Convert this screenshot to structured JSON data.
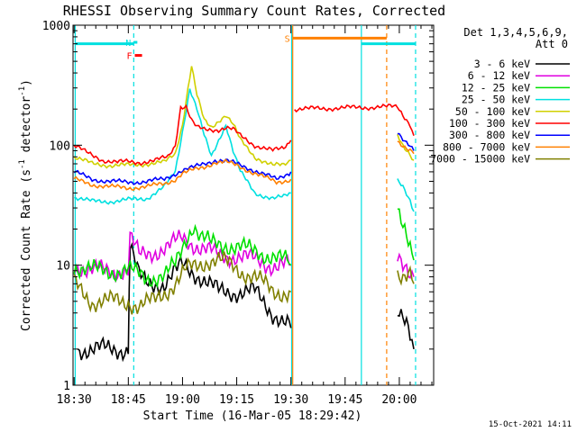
{
  "chart_data": {
    "type": "line",
    "title": "RHESSI Observing Summary Count Rates, Corrected",
    "xlabel": "Start Time (16-Mar-05 18:29:42)",
    "ylabel": "Corrected Count Rate (s⁻¹ detector⁻¹)",
    "ylabel_main": "Corrected Count Rate (s",
    "ylabel_sup1": "-1",
    "ylabel_mid": " detector",
    "ylabel_sup2": "-1",
    "ylabel_end": ")",
    "x_unit": "minutes",
    "x_start": "18:30",
    "xlim": [
      -0.3,
      99.5
    ],
    "ylim": [
      1,
      1000
    ],
    "yscale": "log",
    "x_ticks": [
      {
        "pos": 0,
        "label": "18:30"
      },
      {
        "pos": 15,
        "label": "18:45"
      },
      {
        "pos": 30,
        "label": "19:00"
      },
      {
        "pos": 45,
        "label": "19:15"
      },
      {
        "pos": 60,
        "label": "19:30"
      },
      {
        "pos": 75,
        "label": "19:45"
      },
      {
        "pos": 90,
        "label": "20:00"
      }
    ],
    "y_ticks": [
      {
        "val": 1,
        "label": "1"
      },
      {
        "val": 10,
        "label": "10"
      },
      {
        "val": 100,
        "label": "100"
      },
      {
        "val": 1000,
        "label": "1000"
      }
    ],
    "legend_header": [
      "Det 1,3,4,5,6,9,",
      "Att 0"
    ],
    "legend_placement": "right",
    "footer_date": "15-Oct-2021 14:11",
    "gaps": [
      [
        60.5,
        89.2
      ]
    ],
    "series": [
      {
        "name": "3 - 6 keV",
        "color": "#000000",
        "points": [
          [
            1,
            2
          ],
          [
            5,
            2
          ],
          [
            10,
            2
          ],
          [
            15,
            2
          ],
          [
            15.5,
            15
          ],
          [
            18,
            8
          ],
          [
            20,
            7
          ],
          [
            25,
            7
          ],
          [
            30,
            10
          ],
          [
            35,
            8
          ],
          [
            40,
            6
          ],
          [
            45,
            6
          ],
          [
            50,
            6
          ],
          [
            55,
            4
          ],
          [
            60,
            3
          ],
          [
            89.5,
            4
          ],
          [
            92,
            3
          ],
          [
            94,
            2
          ]
        ]
      },
      {
        "name": "6 - 12 keV",
        "color": "#e000e0",
        "points": [
          [
            0,
            10
          ],
          [
            5,
            9
          ],
          [
            10,
            9
          ],
          [
            15,
            9
          ],
          [
            15.5,
            17
          ],
          [
            18,
            12
          ],
          [
            22,
            13
          ],
          [
            26,
            14
          ],
          [
            30,
            17
          ],
          [
            35,
            14
          ],
          [
            40,
            12
          ],
          [
            45,
            12
          ],
          [
            50,
            11
          ],
          [
            55,
            10
          ],
          [
            58,
            10
          ],
          [
            60,
            10
          ],
          [
            89.5,
            11
          ],
          [
            91,
            9
          ],
          [
            93,
            8
          ],
          [
            94,
            8
          ]
        ]
      },
      {
        "name": "12 - 25 keV",
        "color": "#00e000",
        "points": [
          [
            0,
            10
          ],
          [
            5,
            9
          ],
          [
            10,
            9
          ],
          [
            15,
            9
          ],
          [
            20,
            8
          ],
          [
            25,
            8
          ],
          [
            28,
            10
          ],
          [
            31,
            17
          ],
          [
            33,
            22
          ],
          [
            35,
            17
          ],
          [
            38,
            15
          ],
          [
            42,
            15
          ],
          [
            46,
            14
          ],
          [
            50,
            13
          ],
          [
            55,
            12
          ],
          [
            58,
            11
          ],
          [
            60,
            10
          ],
          [
            89.5,
            26
          ],
          [
            91,
            20
          ],
          [
            93,
            15
          ],
          [
            94,
            11
          ]
        ]
      },
      {
        "name": "25 - 50 keV",
        "color": "#00e0e0",
        "points": [
          [
            0,
            37
          ],
          [
            5,
            34
          ],
          [
            10,
            34
          ],
          [
            15,
            35
          ],
          [
            20,
            36
          ],
          [
            25,
            45
          ],
          [
            28,
            60
          ],
          [
            30,
            130
          ],
          [
            32,
            300
          ],
          [
            34,
            200
          ],
          [
            36,
            120
          ],
          [
            38,
            80
          ],
          [
            40,
            110
          ],
          [
            42,
            150
          ],
          [
            44,
            90
          ],
          [
            46,
            60
          ],
          [
            50,
            40
          ],
          [
            55,
            36
          ],
          [
            58,
            37
          ],
          [
            60,
            40
          ],
          [
            89.5,
            50
          ],
          [
            91,
            45
          ],
          [
            93,
            35
          ],
          [
            94,
            28
          ]
        ]
      },
      {
        "name": "50 - 100 keV",
        "color": "#d0d000",
        "points": [
          [
            0,
            80
          ],
          [
            5,
            70
          ],
          [
            10,
            68
          ],
          [
            15,
            68
          ],
          [
            20,
            70
          ],
          [
            25,
            72
          ],
          [
            28,
            85
          ],
          [
            30,
            150
          ],
          [
            31.5,
            300
          ],
          [
            32.5,
            460
          ],
          [
            34,
            260
          ],
          [
            36,
            160
          ],
          [
            38,
            140
          ],
          [
            40,
            160
          ],
          [
            42,
            180
          ],
          [
            44,
            150
          ],
          [
            46,
            110
          ],
          [
            50,
            80
          ],
          [
            55,
            68
          ],
          [
            58,
            68
          ],
          [
            60,
            75
          ],
          [
            89.5,
            120
          ],
          [
            91,
            100
          ],
          [
            93,
            85
          ],
          [
            94,
            75
          ]
        ]
      },
      {
        "name": "100 - 300 keV",
        "color": "#ff0000",
        "points": [
          [
            0,
            100
          ],
          [
            4,
            85
          ],
          [
            8,
            75
          ],
          [
            12,
            72
          ],
          [
            15,
            73
          ],
          [
            18,
            72
          ],
          [
            22,
            74
          ],
          [
            26,
            80
          ],
          [
            28,
            100
          ],
          [
            29.5,
            210
          ],
          [
            31,
            210
          ],
          [
            32.5,
            160
          ],
          [
            34,
            140
          ],
          [
            36,
            135
          ],
          [
            38,
            135
          ],
          [
            40,
            135
          ],
          [
            42,
            140
          ],
          [
            44,
            135
          ],
          [
            46,
            120
          ],
          [
            50,
            100
          ],
          [
            55,
            90
          ],
          [
            58,
            95
          ],
          [
            60,
            110
          ],
          [
            61,
            200
          ],
          [
            89.5,
            210
          ],
          [
            91,
            180
          ],
          [
            93,
            150
          ],
          [
            94,
            120
          ]
        ]
      },
      {
        "name": "300 - 800 keV",
        "color": "#0000ff",
        "points": [
          [
            0,
            60
          ],
          [
            5,
            52
          ],
          [
            10,
            50
          ],
          [
            15,
            49
          ],
          [
            20,
            50
          ],
          [
            25,
            52
          ],
          [
            28,
            58
          ],
          [
            30,
            62
          ],
          [
            33,
            65
          ],
          [
            36,
            70
          ],
          [
            39,
            75
          ],
          [
            42,
            74
          ],
          [
            45,
            70
          ],
          [
            48,
            65
          ],
          [
            52,
            58
          ],
          [
            56,
            52
          ],
          [
            60,
            60
          ],
          [
            89.5,
            130
          ],
          [
            91,
            115
          ],
          [
            93,
            100
          ],
          [
            94,
            90
          ]
        ]
      },
      {
        "name": "800 - 7000 keV",
        "color": "#ff8000",
        "points": [
          [
            0,
            52
          ],
          [
            5,
            47
          ],
          [
            10,
            45
          ],
          [
            15,
            44
          ],
          [
            20,
            45
          ],
          [
            25,
            48
          ],
          [
            28,
            52
          ],
          [
            30,
            58
          ],
          [
            33,
            62
          ],
          [
            36,
            66
          ],
          [
            39,
            72
          ],
          [
            42,
            72
          ],
          [
            45,
            68
          ],
          [
            48,
            62
          ],
          [
            52,
            55
          ],
          [
            56,
            49
          ],
          [
            60,
            52
          ],
          [
            89.5,
            110
          ],
          [
            91,
            100
          ],
          [
            93,
            90
          ],
          [
            94,
            85
          ]
        ]
      },
      {
        "name": "7000 - 15000 keV",
        "color": "#808000",
        "points": [
          [
            0,
            7
          ],
          [
            5,
            5
          ],
          [
            10,
            5
          ],
          [
            15,
            5
          ],
          [
            18,
            4.5
          ],
          [
            22,
            5
          ],
          [
            25,
            6
          ],
          [
            28,
            7
          ],
          [
            31,
            9
          ],
          [
            34,
            10
          ],
          [
            37,
            11
          ],
          [
            40,
            11
          ],
          [
            43,
            10
          ],
          [
            46,
            9
          ],
          [
            50,
            8
          ],
          [
            55,
            6
          ],
          [
            58,
            6
          ],
          [
            60,
            6
          ],
          [
            89.5,
            9
          ],
          [
            91,
            8
          ],
          [
            93,
            8
          ],
          [
            94,
            7
          ]
        ]
      }
    ],
    "flag_lines": [
      {
        "label": "",
        "color": "#00e0e0",
        "points": [
          [
            0.2,
            700
          ],
          [
            16.5,
            700
          ]
        ]
      },
      {
        "label": "N",
        "color": "#00e0e0",
        "points": [
          [
            16.5,
            720
          ],
          [
            17.5,
            720
          ]
        ]
      },
      {
        "label": "F",
        "color": "#ff0000",
        "points": [
          [
            16.8,
            560
          ],
          [
            18.8,
            560
          ]
        ]
      },
      {
        "label": "S",
        "color": "#ff8000",
        "points": [
          [
            60.5,
            780
          ],
          [
            86.5,
            780
          ]
        ]
      },
      {
        "label": "",
        "color": "#00e0e0",
        "points": [
          [
            79.5,
            700
          ],
          [
            94.5,
            700
          ]
        ]
      }
    ],
    "vlines": [
      {
        "pos": 0.3,
        "color": "#00e0e0",
        "style": "solid"
      },
      {
        "pos": 16.5,
        "color": "#00e0e0",
        "style": "dashed"
      },
      {
        "pos": 60.2,
        "color": "#00e0e0",
        "style": "solid"
      },
      {
        "pos": 60.5,
        "color": "#ff8000",
        "style": "solid"
      },
      {
        "pos": 79.5,
        "color": "#00e0e0",
        "style": "solid"
      },
      {
        "pos": 86.5,
        "color": "#ff8000",
        "style": "dashed"
      },
      {
        "pos": 94.5,
        "color": "#00e0e0",
        "style": "dashed"
      }
    ]
  }
}
